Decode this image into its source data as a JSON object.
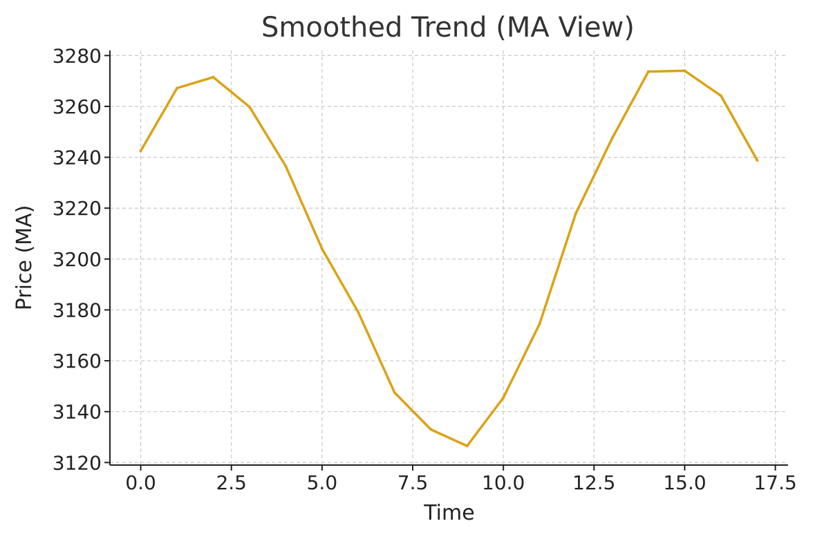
{
  "chart_data": {
    "type": "line",
    "title": "Smoothed Trend (MA View)",
    "xlabel": "Time",
    "ylabel": "Price (MA)",
    "xlim": [
      -0.85,
      17.85
    ],
    "ylim": [
      3119,
      3282
    ],
    "x_ticks": [
      0.0,
      2.5,
      5.0,
      7.5,
      10.0,
      12.5,
      15.0,
      17.5
    ],
    "x_tick_labels": [
      "0.0",
      "2.5",
      "5.0",
      "7.5",
      "10.0",
      "12.5",
      "15.0",
      "17.5"
    ],
    "y_ticks": [
      3120,
      3140,
      3160,
      3180,
      3200,
      3220,
      3240,
      3260,
      3280
    ],
    "y_tick_labels": [
      "3120",
      "3140",
      "3160",
      "3180",
      "3200",
      "3220",
      "3240",
      "3260",
      "3280"
    ],
    "grid": true,
    "series": [
      {
        "name": "MA",
        "color": "#dba215",
        "x": [
          0,
          1,
          2,
          3,
          4,
          5,
          6,
          7,
          8,
          9,
          10,
          11,
          12,
          13,
          14,
          15,
          16,
          17
        ],
        "values": [
          3242.5,
          3267.2,
          3271.5,
          3259.8,
          3236.5,
          3204.0,
          3179.0,
          3147.5,
          3133.0,
          3126.5,
          3145.5,
          3174.5,
          3218.0,
          3247.5,
          3273.7,
          3274.0,
          3264.2,
          3238.8
        ]
      }
    ]
  }
}
